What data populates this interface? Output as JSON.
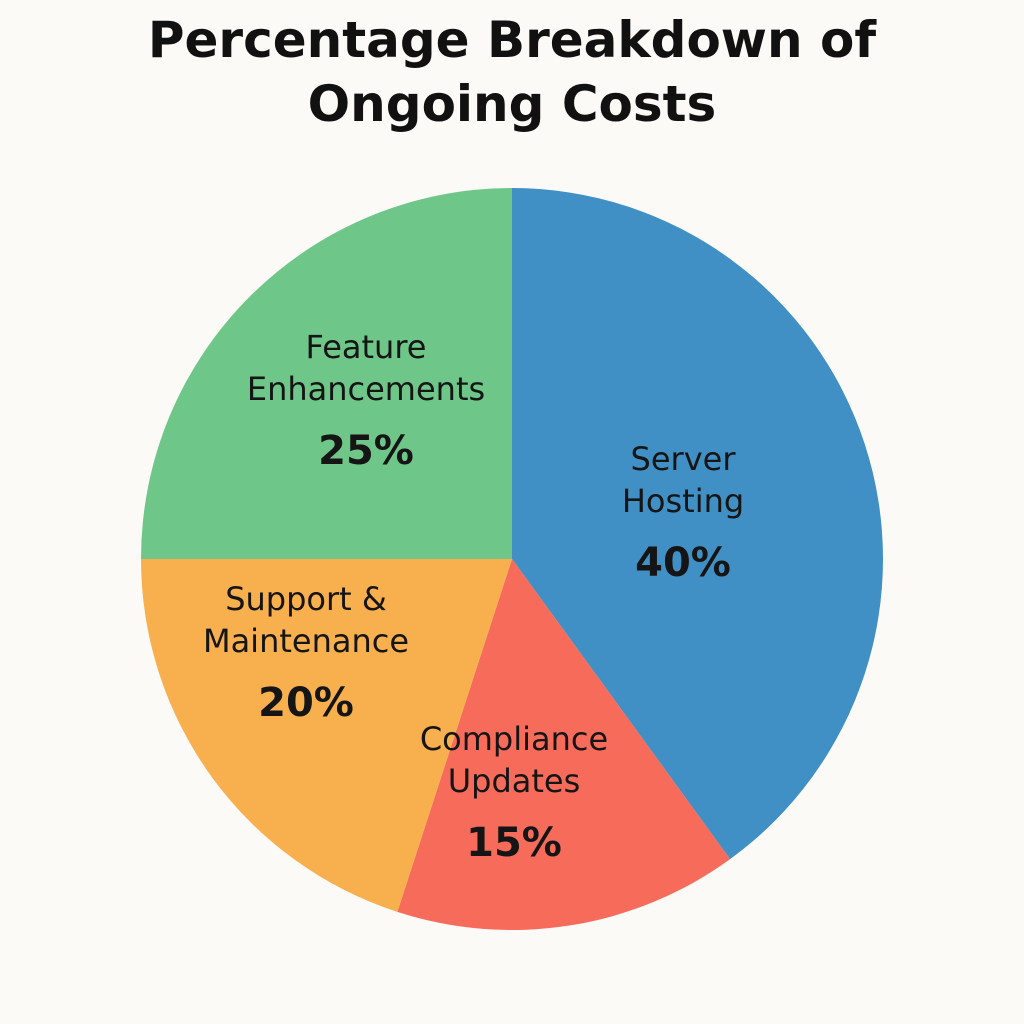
{
  "chart_data": {
    "type": "pie",
    "title": [
      "Percentage Breakdown of",
      "Ongoing Costs"
    ],
    "slices": [
      {
        "label": [
          "Server",
          "Hosting"
        ],
        "value": 40,
        "value_label": "40%",
        "color": "#4090c5"
      },
      {
        "label": [
          "Compliance",
          "Updates"
        ],
        "value": 15,
        "value_label": "15%",
        "color": "#f76b5b"
      },
      {
        "label": [
          "Support &",
          "Maintenance"
        ],
        "value": 20,
        "value_label": "20%",
        "color": "#f8b04f"
      },
      {
        "label": [
          "Feature",
          "Enhancements"
        ],
        "value": 25,
        "value_label": "25%",
        "color": "#6ec789"
      }
    ],
    "start": "12 o'clock",
    "direction": "clockwise"
  }
}
